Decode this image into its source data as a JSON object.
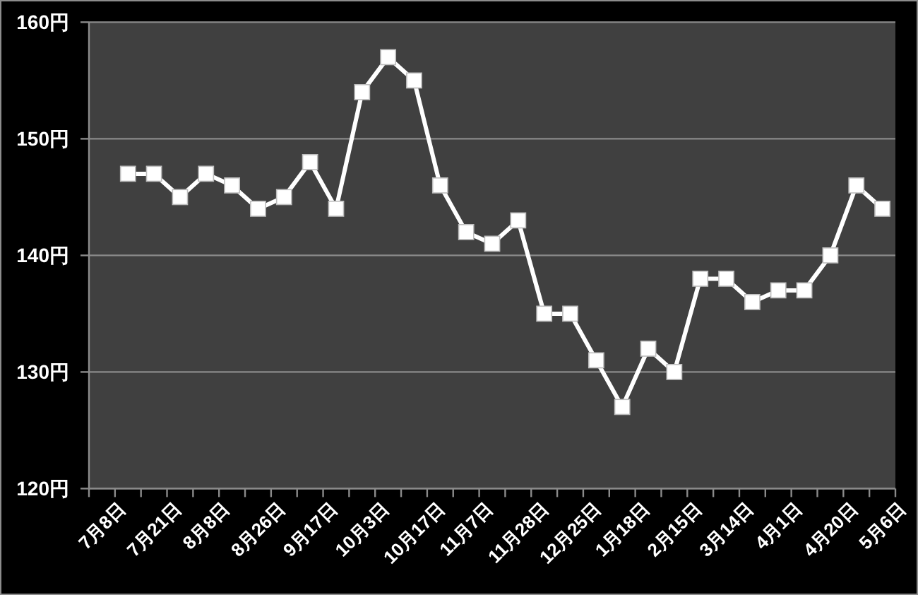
{
  "chart_data": {
    "type": "line",
    "categories": [
      "7月8日",
      null,
      "7月21日",
      null,
      "8月8日",
      null,
      "8月26日",
      null,
      "9月17日",
      null,
      "10月3日",
      null,
      "10月17日",
      null,
      "11月7日",
      null,
      "11月28日",
      null,
      "12月25日",
      null,
      "1月18日",
      null,
      "2月15日",
      null,
      "3月14日",
      null,
      "4月1日",
      null,
      "4月20日",
      null,
      "5月6日"
    ],
    "values": [
      null,
      147,
      147,
      145,
      147,
      146,
      144,
      145,
      148,
      144,
      154,
      157,
      155,
      146,
      142,
      141,
      143,
      135,
      135,
      131,
      127,
      132,
      130,
      138,
      138,
      136,
      137,
      137,
      140,
      146,
      144
    ],
    "color": "#ffffff",
    "ylim": [
      120,
      160
    ],
    "yticks": [
      {
        "value": 120,
        "label": "120円"
      },
      {
        "value": 130,
        "label": "130円"
      },
      {
        "value": 140,
        "label": "140円"
      },
      {
        "value": 150,
        "label": "150円"
      },
      {
        "value": 160,
        "label": "160円"
      }
    ],
    "grid": "y",
    "marker": "square"
  }
}
